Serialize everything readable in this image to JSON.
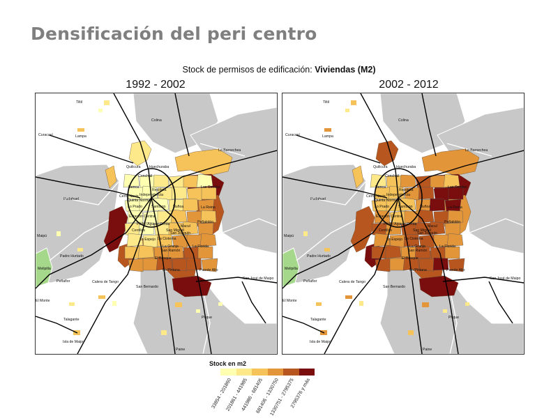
{
  "page": {
    "title": "Densificación del peri centro",
    "subtitle_prefix": "Stock de permisos de edificación: ",
    "subtitle_bold": "Viviendas (M2)"
  },
  "maps": [
    {
      "period": "1992 - 2002",
      "labels": [
        "Tiltil",
        "Colina",
        "Curacaví",
        "Lampa",
        "Lo Barnechea",
        "Quilicura",
        "Huechuraba",
        "Conchalí",
        "Renca",
        "Recoleta",
        "Independencia",
        "Las Condes",
        "Cerro Navia",
        "Quinta Normal",
        "Lo Prado",
        "Santiago",
        "Ñuñoa",
        "La Reina",
        "Pudahuel",
        "Estación Central",
        "Pedro Aguirre Cerda",
        "Macul",
        "Peñalolén",
        "Cerrillos",
        "San Miguel",
        "San Joaquín",
        "Lo Espejo",
        "La Cisterna",
        "Maipú",
        "San Ramón",
        "La Florida",
        "La Granja",
        "El Bosque",
        "Padre Hurtado",
        "La Pintana",
        "Puente Alto",
        "Melipilla",
        "Peñaflor",
        "Calera de Tango",
        "San Bernardo",
        "San José de Maipo",
        "El Monte",
        "Talagante",
        "Pirque",
        "Isla de Maipo",
        "Paine"
      ]
    },
    {
      "period": "2002 - 2012",
      "labels": [
        "Tiltil",
        "Colina",
        "Curacaví",
        "Lampa",
        "Lo Barnechea",
        "Quilicura",
        "Huechuraba",
        "Conchalí",
        "Renca",
        "Recoleta",
        "Independencia",
        "Las Condes",
        "Cerro Navia",
        "Quinta Normal",
        "Lo Prado",
        "Santiago",
        "Ñuñoa",
        "La Reina",
        "Pudahuel",
        "Estación Central",
        "Pedro Aguirre Cerda",
        "Macul",
        "Peñalolén",
        "Cerrillos",
        "San Miguel",
        "San Joaquín",
        "Lo Espejo",
        "La Cisterna",
        "Maipú",
        "San Ramón",
        "La Florida",
        "La Granja",
        "El Bosque",
        "Padre Hurtado",
        "La Pintana",
        "Puente Alto",
        "Melipilla",
        "Peñaflor",
        "Calera de Tango",
        "San Bernardo",
        "San José de Maipo",
        "El Monte",
        "Talagante",
        "Pirque",
        "Isla de Maipo",
        "Paine"
      ]
    }
  ],
  "legend": {
    "title": "Stock en m2",
    "classes": [
      {
        "label": "33854 - 201860",
        "color": "#ffffb2"
      },
      {
        "label": "201861 - 441985",
        "color": "#fde98a"
      },
      {
        "label": "441986 - 681405",
        "color": "#f6c35a"
      },
      {
        "label": "681406 - 1330750",
        "color": "#e3953a"
      },
      {
        "label": "1330751 - 2795375",
        "color": "#b8561f"
      },
      {
        "label": "2795376 y más",
        "color": "#7a0d0d"
      }
    ]
  },
  "colors": {
    "region_gray": "#c8c8c8",
    "melipilla_green": "#a6d88c",
    "road": "#000000",
    "boundary": "#ffffff"
  }
}
